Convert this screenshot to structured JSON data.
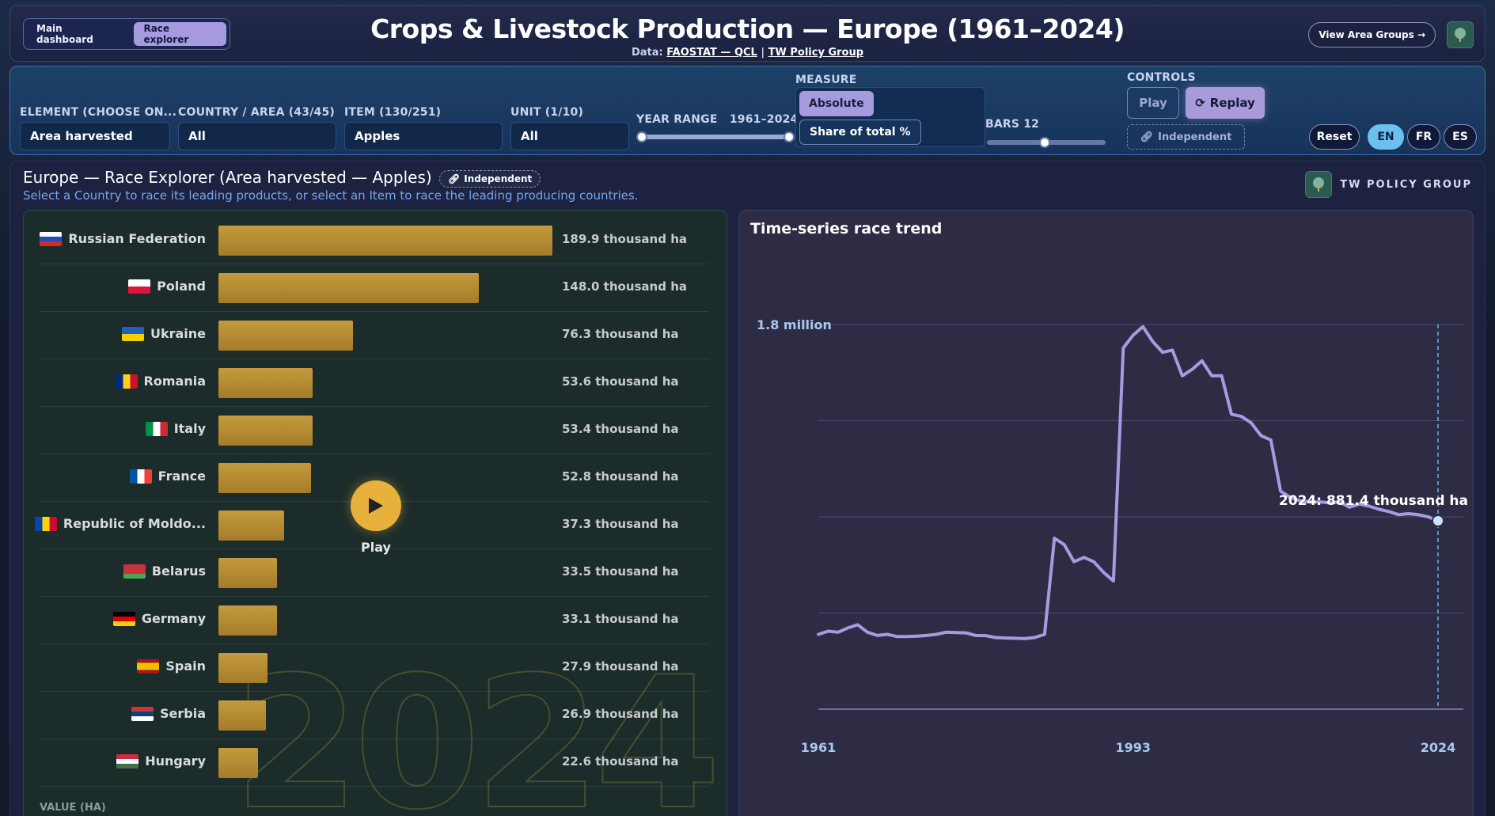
{
  "header": {
    "tabs": [
      {
        "label": "Main dashboard",
        "active": false
      },
      {
        "label": "Race explorer",
        "active": true
      }
    ],
    "title": "Crops & Livestock Production — Europe (1961–2024)",
    "data_prefix": "Data:",
    "source_link": "FAOSTAT — QCL",
    "separator": "|",
    "org_link": "TW Policy Group",
    "view_groups_label": "View Area Groups →",
    "logo_icon": "tw-logo-icon"
  },
  "controls": {
    "element_label": "ELEMENT (CHOOSE ON...",
    "element_value": "Area harvested",
    "country_label": "COUNTRY / AREA (43/45)",
    "country_value": "All",
    "item_label": "ITEM (130/251)",
    "item_value": "Apples",
    "unit_label": "UNIT (1/10)",
    "unit_value": "All",
    "year_range_label": "YEAR RANGE",
    "year_range_value": "1961–2024",
    "year_range_start": 1961,
    "year_range_end": 2024,
    "measure_label": "MEASURE",
    "measure_absolute": "Absolute",
    "measure_share": "Share of total %",
    "bars_label": "BARS 12",
    "bars_value": 12,
    "controls_label": "CONTROLS",
    "play_label": "Play",
    "replay_label": "Replay",
    "independent_label": "Independent",
    "reset_label": "Reset",
    "lang_en": "EN",
    "lang_fr": "FR",
    "lang_es": "ES"
  },
  "main": {
    "title": "Europe — Race Explorer (Area harvested — Apples)",
    "badge": "Independent",
    "description": "Select a Country to race its leading products, or select an Item to race the leading producing countries.",
    "brand_text": "TW POLICY GROUP",
    "race": {
      "year": "2024",
      "play_caption": "Play",
      "axis_label": "VALUE (HA)",
      "rows": [
        {
          "country": "Russian Federation",
          "value": 189.9,
          "label": "189.9 thousand ha",
          "flag": "flag-russia-icon"
        },
        {
          "country": "Poland",
          "value": 148.0,
          "label": "148.0 thousand ha",
          "flag": "flag-poland-icon"
        },
        {
          "country": "Ukraine",
          "value": 76.3,
          "label": "76.3 thousand ha",
          "flag": "flag-ukraine-icon"
        },
        {
          "country": "Romania",
          "value": 53.6,
          "label": "53.6 thousand ha",
          "flag": "flag-romania-icon"
        },
        {
          "country": "Italy",
          "value": 53.4,
          "label": "53.4 thousand ha",
          "flag": "flag-italy-icon"
        },
        {
          "country": "France",
          "value": 52.8,
          "label": "52.8 thousand ha",
          "flag": "flag-france-icon"
        },
        {
          "country": "Republic of Moldo...",
          "value": 37.3,
          "label": "37.3 thousand ha",
          "flag": "flag-moldova-icon"
        },
        {
          "country": "Belarus",
          "value": 33.5,
          "label": "33.5 thousand ha",
          "flag": "flag-belarus-icon"
        },
        {
          "country": "Germany",
          "value": 33.1,
          "label": "33.1 thousand ha",
          "flag": "flag-germany-icon"
        },
        {
          "country": "Spain",
          "value": 27.9,
          "label": "27.9 thousand ha",
          "flag": "flag-spain-icon"
        },
        {
          "country": "Serbia",
          "value": 26.9,
          "label": "26.9 thousand ha",
          "flag": "flag-serbia-icon"
        },
        {
          "country": "Hungary",
          "value": 22.6,
          "label": "22.6 thousand ha",
          "flag": "flag-hungary-icon"
        }
      ]
    },
    "trend": {
      "title": "Time-series race trend",
      "y_label": "1.8 million",
      "x_ticks": [
        "1961",
        "1993",
        "2024"
      ],
      "end_label": "2024: 881.4 thousand ha"
    }
  },
  "colors": {
    "accent": "#a79be0",
    "bar": "#c59a3c",
    "trend_line": "#a79be0",
    "lang_active": "#6cc0f0"
  },
  "chart_data": [
    {
      "type": "bar",
      "title": "Europe — Race Explorer (Area harvested — Apples)",
      "xlabel": "VALUE (HA)",
      "categories": [
        "Russian Federation",
        "Poland",
        "Ukraine",
        "Romania",
        "Italy",
        "France",
        "Republic of Moldo...",
        "Belarus",
        "Germany",
        "Spain",
        "Serbia",
        "Hungary"
      ],
      "values": [
        189.9,
        148.0,
        76.3,
        53.6,
        53.4,
        52.8,
        37.3,
        33.5,
        33.1,
        27.9,
        26.9,
        22.6
      ],
      "unit": "thousand ha",
      "year": 2024
    },
    {
      "type": "line",
      "title": "Time-series race trend",
      "x": [
        1961,
        1962,
        1963,
        1964,
        1965,
        1966,
        1967,
        1968,
        1969,
        1970,
        1971,
        1972,
        1973,
        1974,
        1975,
        1976,
        1977,
        1978,
        1979,
        1980,
        1981,
        1982,
        1983,
        1984,
        1985,
        1986,
        1987,
        1988,
        1989,
        1990,
        1991,
        1992,
        1993,
        1994,
        1995,
        1996,
        1997,
        1998,
        1999,
        2000,
        2001,
        2002,
        2003,
        2004,
        2005,
        2006,
        2007,
        2008,
        2009,
        2010,
        2011,
        2012,
        2013,
        2014,
        2015,
        2016,
        2017,
        2018,
        2019,
        2020,
        2021,
        2022,
        2023,
        2024
      ],
      "y": [
        350,
        365,
        360,
        380,
        395,
        360,
        345,
        350,
        340,
        340,
        342,
        345,
        350,
        360,
        358,
        357,
        345,
        344,
        335,
        333,
        332,
        330,
        335,
        350,
        800,
        770,
        690,
        710,
        690,
        640,
        600,
        1690,
        1750,
        1790,
        1720,
        1670,
        1680,
        1560,
        1590,
        1630,
        1560,
        1560,
        1380,
        1370,
        1340,
        1280,
        1260,
        1020,
        990,
        975,
        970,
        970,
        965,
        970,
        945,
        960,
        950,
        935,
        925,
        910,
        915,
        910,
        900,
        881.4
      ],
      "xlabel": "",
      "ylabel": "",
      "xlim": [
        1961,
        2024
      ],
      "ylim": [
        0,
        1800
      ],
      "y_unit": "thousand ha",
      "grid": true
    }
  ]
}
